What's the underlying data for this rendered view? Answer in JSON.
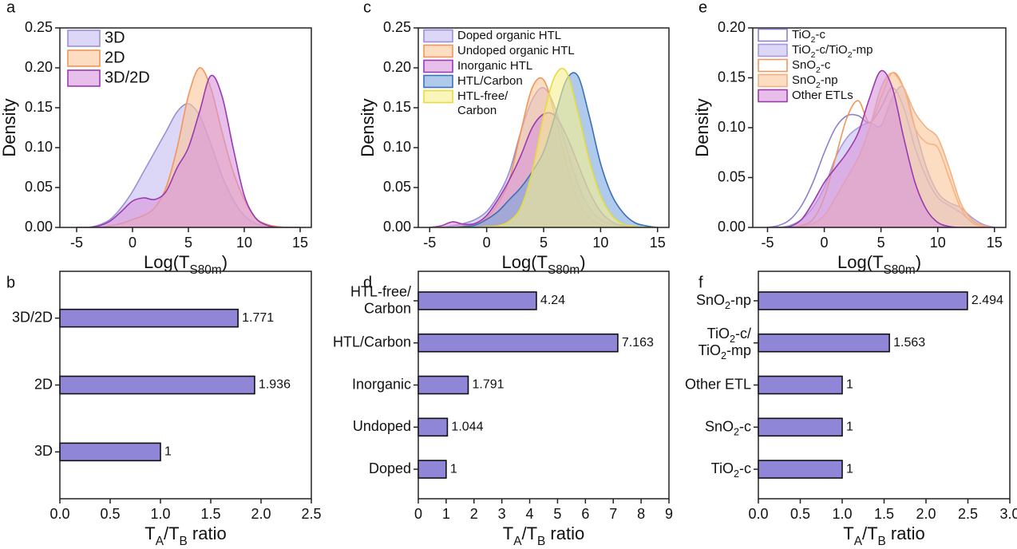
{
  "chart_data": [
    {
      "type": "area",
      "panel_label": "a",
      "ylabel": "Density",
      "xlabel": [
        "Log(T",
        "S80m",
        ")"
      ],
      "x": [
        -5,
        -4,
        -3,
        -2,
        -1,
        0,
        1,
        2,
        3,
        4,
        5,
        6,
        7,
        8,
        9,
        10,
        11,
        12,
        13,
        14,
        15
      ],
      "xlim": [
        -6.5,
        16
      ],
      "xticks": [
        -5,
        0,
        5,
        10,
        15
      ],
      "ylim": [
        0,
        0.25
      ],
      "yticks": [
        {
          "value": 0,
          "label": "0.00"
        },
        0.05,
        {
          "value": 0.1,
          "label": "0.10"
        },
        0.15,
        {
          "value": 0.2,
          "label": "0.20"
        },
        0.25
      ],
      "legend": "upper left",
      "series": [
        {
          "name": "3D",
          "color": "#c4bdf0",
          "edge_color": "#9a8fd8",
          "values": [
            0,
            0,
            0.003,
            0.01,
            0.025,
            0.045,
            0.07,
            0.095,
            0.12,
            0.145,
            0.155,
            0.14,
            0.105,
            0.065,
            0.035,
            0.015,
            0.005,
            0.002,
            0,
            0,
            0
          ]
        },
        {
          "name": "2D",
          "color": "#fbc79a",
          "edge_color": "#f0965a",
          "values": [
            0,
            0,
            0,
            0.002,
            0.005,
            0.01,
            0.015,
            0.025,
            0.05,
            0.1,
            0.165,
            0.2,
            0.175,
            0.12,
            0.07,
            0.035,
            0.012,
            0.004,
            0.001,
            0,
            0
          ]
        },
        {
          "name": "3D/2D",
          "color": "#d794dc",
          "edge_color": "#9a3aae",
          "values": [
            0,
            0,
            0.002,
            0.008,
            0.02,
            0.033,
            0.037,
            0.035,
            0.045,
            0.075,
            0.1,
            0.145,
            0.19,
            0.165,
            0.1,
            0.04,
            0.012,
            0.003,
            0,
            0,
            0
          ]
        }
      ]
    },
    {
      "type": "area",
      "panel_label": "c",
      "ylabel": "Density",
      "xlabel": [
        "Log(T",
        "S80m",
        ")"
      ],
      "x": [
        -5,
        -4,
        -3,
        -2,
        -1,
        0,
        1,
        2,
        3,
        4,
        5,
        6,
        7,
        8,
        9,
        10,
        11,
        12,
        13,
        14,
        15
      ],
      "xlim": [
        -6,
        16
      ],
      "xticks": [
        -5,
        0,
        5,
        10,
        15
      ],
      "ylim": [
        0,
        0.25
      ],
      "yticks": [
        {
          "value": 0,
          "label": "0.00"
        },
        0.05,
        {
          "value": 0.1,
          "label": "0.10"
        },
        0.15,
        {
          "value": 0.2,
          "label": "0.20"
        },
        0.25
      ],
      "legend": "upper left",
      "series": [
        {
          "name": "Doped organic HTL",
          "color": "#c4bdf0",
          "edge_color": "#9a8fd8",
          "values": [
            0,
            0,
            0.002,
            0.005,
            0.01,
            0.02,
            0.04,
            0.07,
            0.12,
            0.16,
            0.175,
            0.15,
            0.1,
            0.055,
            0.025,
            0.01,
            0.004,
            0.001,
            0,
            0,
            0
          ]
        },
        {
          "name": "Undoped organic HTL",
          "color": "#fbc79a",
          "edge_color": "#f0965a",
          "values": [
            0,
            0,
            0,
            0.002,
            0.005,
            0.012,
            0.03,
            0.06,
            0.12,
            0.175,
            0.185,
            0.14,
            0.08,
            0.035,
            0.012,
            0.004,
            0.001,
            0,
            0,
            0,
            0
          ]
        },
        {
          "name": "Inorganic HTL",
          "color": "#d794dc",
          "edge_color": "#9a3aae",
          "values": [
            0,
            0.002,
            0.007,
            0.004,
            0.005,
            0.015,
            0.035,
            0.06,
            0.09,
            0.125,
            0.142,
            0.14,
            0.115,
            0.08,
            0.045,
            0.02,
            0.007,
            0.002,
            0,
            0,
            0
          ]
        },
        {
          "name": "HTL/Carbon",
          "color": "#7aa7dc",
          "edge_color": "#3a70b8",
          "values": [
            0,
            0,
            0,
            0.001,
            0.003,
            0.01,
            0.02,
            0.035,
            0.05,
            0.07,
            0.095,
            0.14,
            0.185,
            0.19,
            0.14,
            0.08,
            0.04,
            0.018,
            0.006,
            0.002,
            0
          ]
        },
        {
          "name": [
            [
              "HTL-free/"
            ],
            [
              "Carbon"
            ]
          ],
          "color": "#f6f08e",
          "edge_color": "#e4dc3a",
          "values": [
            0,
            0,
            0,
            0,
            0,
            0.001,
            0.002,
            0.008,
            0.025,
            0.07,
            0.14,
            0.19,
            0.195,
            0.145,
            0.085,
            0.04,
            0.015,
            0.004,
            0.001,
            0,
            0
          ]
        }
      ]
    },
    {
      "type": "area",
      "panel_label": "e",
      "ylabel": "Density",
      "xlabel": [
        "Log(T",
        "S80m",
        ")"
      ],
      "x": [
        -5,
        -4,
        -3,
        -2,
        -1,
        0,
        1,
        2,
        3,
        4,
        5,
        6,
        7,
        8,
        9,
        10,
        11,
        12,
        13,
        14,
        15
      ],
      "xlim": [
        -6.3,
        16
      ],
      "xticks": [
        -5,
        0,
        5,
        10,
        15
      ],
      "ylim": [
        0,
        0.2
      ],
      "yticks": [
        {
          "value": 0,
          "label": "0.00"
        },
        0.05,
        {
          "value": 0.1,
          "label": "0.10"
        },
        0.15,
        {
          "value": 0.2,
          "label": "0.20"
        }
      ],
      "legend": "upper left",
      "series": [
        {
          "name": [
            "TiO",
            "2",
            "-c"
          ],
          "color": "none",
          "edge_color": "#8a80d0",
          "values": [
            0,
            0.002,
            0.008,
            0.022,
            0.045,
            0.075,
            0.1,
            0.112,
            0.112,
            0.105,
            0.12,
            0.14,
            0.12,
            0.08,
            0.05,
            0.03,
            0.022,
            0.015,
            0.006,
            0.001,
            0
          ]
        },
        {
          "name": [
            "TiO",
            "2",
            "-c/TiO",
            "2",
            "-mp"
          ],
          "color": "#c4bdf0",
          "edge_color": "#a49ae0",
          "values": [
            0,
            0,
            0.002,
            0.008,
            0.02,
            0.04,
            0.07,
            0.09,
            0.1,
            0.105,
            0.102,
            0.13,
            0.14,
            0.1,
            0.06,
            0.035,
            0.025,
            0.02,
            0.01,
            0.003,
            0
          ]
        },
        {
          "name": [
            "SnO",
            "2",
            "-c"
          ],
          "color": "none",
          "edge_color": "#f0965a",
          "values": [
            0,
            0,
            0,
            0.002,
            0.008,
            0.03,
            0.07,
            0.11,
            0.127,
            0.105,
            0.13,
            0.155,
            0.14,
            0.1,
            0.085,
            0.08,
            0.05,
            0.02,
            0.005,
            0.001,
            0
          ]
        },
        {
          "name": [
            "SnO",
            "2",
            "-np"
          ],
          "color": "#fbc79a",
          "edge_color": "#f4b080",
          "values": [
            0,
            0,
            0,
            0.001,
            0.004,
            0.012,
            0.03,
            0.05,
            0.07,
            0.1,
            0.14,
            0.155,
            0.14,
            0.115,
            0.1,
            0.09,
            0.06,
            0.025,
            0.008,
            0.002,
            0
          ]
        },
        {
          "name": "Other ETLs",
          "color": "#d794dc",
          "edge_color": "#9a3aae",
          "values": [
            0,
            0,
            0.001,
            0.008,
            0.025,
            0.045,
            0.06,
            0.075,
            0.095,
            0.13,
            0.157,
            0.14,
            0.09,
            0.045,
            0.018,
            0.005,
            0.001,
            0,
            0,
            0,
            0
          ]
        }
      ]
    },
    {
      "type": "barh",
      "panel_label": "b",
      "xlabel": [
        "T",
        "A",
        "/T",
        "B",
        " ratio"
      ],
      "categories": [
        "3D/2D",
        "2D",
        "3D"
      ],
      "values": [
        1.771,
        1.936,
        1
      ],
      "color": "#8f86d8",
      "edge_color": "#111111",
      "xlim": [
        0,
        2.5
      ],
      "xticks": [
        {
          "value": 0,
          "label": "0.0"
        },
        0.5,
        {
          "value": 1,
          "label": "1.0"
        },
        1.5,
        {
          "value": 2,
          "label": "2.0"
        },
        2.5
      ]
    },
    {
      "type": "barh",
      "panel_label": "d",
      "xlabel": [
        "T",
        "A",
        "/T",
        "B",
        " ratio"
      ],
      "categories": [
        [
          [
            "HTL-free/"
          ],
          [
            "Carbon"
          ]
        ],
        "HTL/Carbon",
        "Inorganic",
        "Undoped",
        "Doped"
      ],
      "values": [
        4.24,
        7.163,
        1.791,
        1.044,
        1
      ],
      "color": "#8f86d8",
      "edge_color": "#111111",
      "xlim": [
        0,
        9
      ],
      "xticks": [
        0,
        1,
        2,
        3,
        4,
        5,
        6,
        7,
        8,
        9
      ]
    },
    {
      "type": "barh",
      "panel_label": "f",
      "xlabel": [
        "T",
        "A",
        "/T",
        "B",
        " ratio"
      ],
      "categories": [
        [
          "SnO",
          "2",
          "-np"
        ],
        [
          [
            "TiO",
            "2",
            "-c/"
          ],
          [
            "TiO",
            "2",
            "-mp"
          ]
        ],
        "Other ETL",
        [
          "SnO",
          "2",
          "-c"
        ],
        [
          "TiO",
          "2",
          "-c"
        ]
      ],
      "values": [
        2.494,
        1.563,
        1,
        1,
        1
      ],
      "color": "#8f86d8",
      "edge_color": "#111111",
      "xlim": [
        0,
        3
      ],
      "xticks": [
        {
          "value": 0,
          "label": "0.0"
        },
        0.5,
        {
          "value": 1,
          "label": "1.0"
        },
        1.5,
        {
          "value": 2,
          "label": "2.0"
        },
        2.5,
        {
          "value": 3,
          "label": "3.0"
        }
      ]
    }
  ]
}
